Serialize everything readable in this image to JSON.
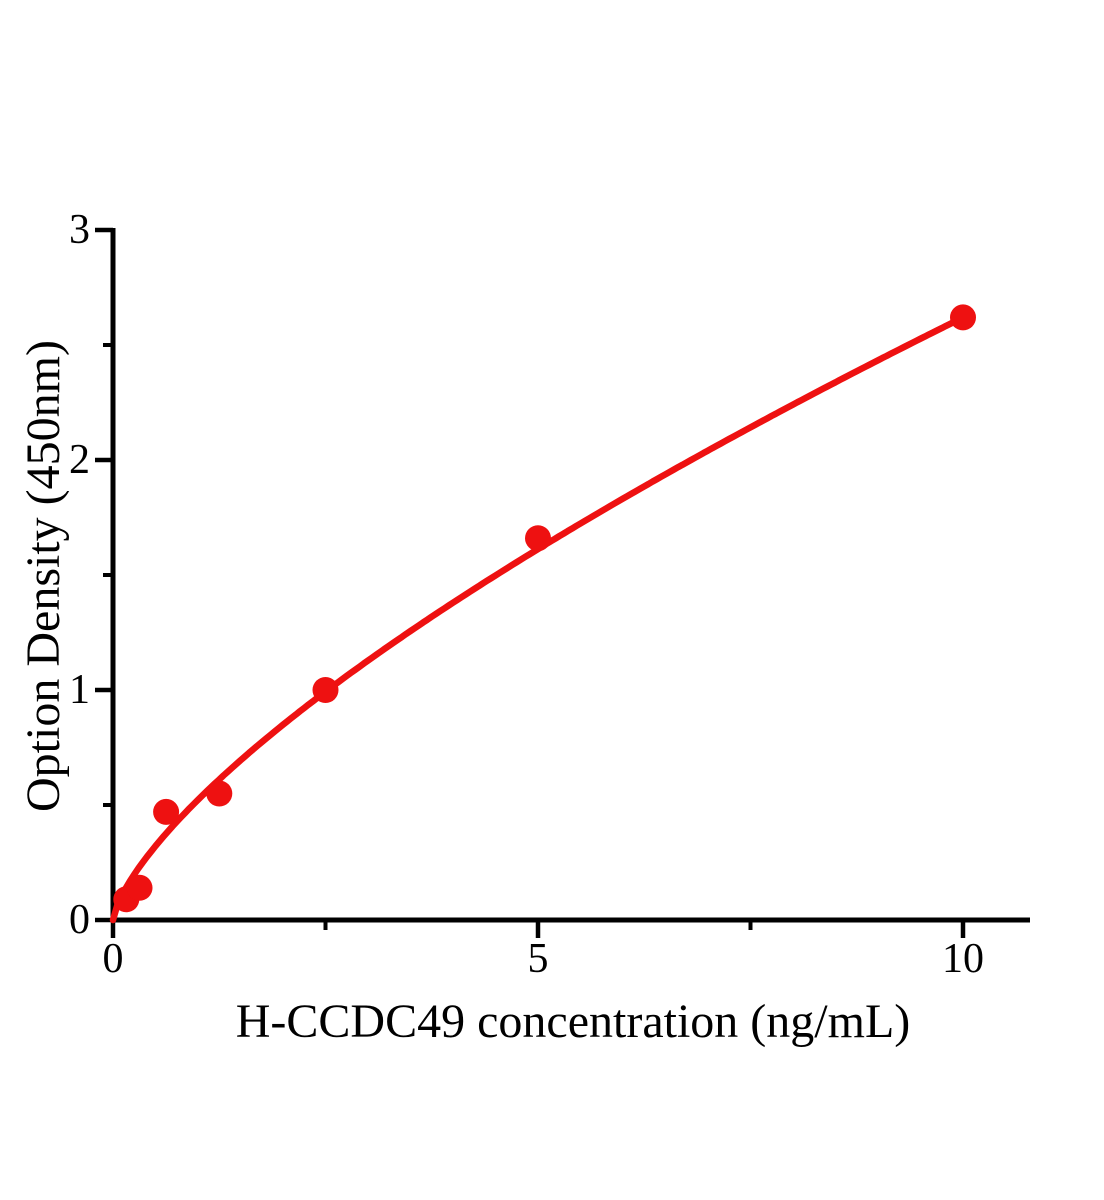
{
  "chart_data": {
    "type": "scatter",
    "title": "",
    "xlabel": "H-CCDC49 concentration (ng/mL)",
    "ylabel": "Option Density (450nm)",
    "x": [
      0.156,
      0.312,
      0.625,
      1.25,
      2.5,
      5,
      10
    ],
    "y": [
      0.09,
      0.14,
      0.47,
      0.55,
      1.0,
      1.66,
      2.62
    ],
    "fit_curve": {
      "type": "power",
      "a": 0.5227,
      "b": 0.7,
      "x_start": 0,
      "x_end": 10
    },
    "xlim": [
      0,
      10.8
    ],
    "ylim": [
      0,
      3
    ],
    "x_major_ticks": [
      0,
      5,
      10
    ],
    "x_minor_ticks": [
      2.5,
      7.5
    ],
    "y_major_ticks": [
      0,
      1,
      2,
      3
    ],
    "y_minor_ticks": [
      0.5,
      1.5,
      2.5
    ],
    "x_tick_labels": [
      "0",
      "5",
      "10"
    ],
    "y_tick_labels": [
      "0",
      "1",
      "2",
      "3"
    ],
    "grid": false,
    "legend": null,
    "colors": {
      "series": "#ee1111",
      "axis": "#000000",
      "background": "#ffffff"
    }
  }
}
